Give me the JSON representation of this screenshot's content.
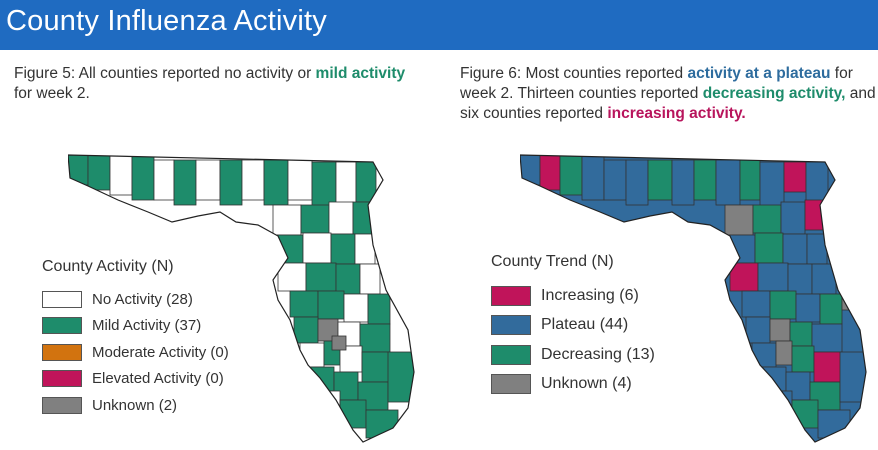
{
  "header": {
    "title": "County Influenza Activity"
  },
  "figure5": {
    "caption_prefix": "Figure 5: All counties reported no activity or ",
    "caption_highlight": "mild activity",
    "caption_suffix": " for week 2.",
    "highlight_color": "#1e8c6b",
    "legend_title": "County Activity (N)",
    "legend": [
      {
        "label": "No Activity (28)",
        "color": "#ffffff"
      },
      {
        "label": "Mild Activity (37)",
        "color": "#1e8c6b"
      },
      {
        "label": "Moderate Activity (0)",
        "color": "#d2730f"
      },
      {
        "label": "Elevated Activity (0)",
        "color": "#c0145a"
      },
      {
        "label": "Unknown (2)",
        "color": "#808080"
      }
    ]
  },
  "figure6": {
    "caption_parts": [
      {
        "text": "Figure 6: Most counties reported ",
        "hl": false
      },
      {
        "text": "activity at a plateau",
        "hl": true,
        "color": "#2e6c9e"
      },
      {
        "text": " for week 2. Thirteen counties reported ",
        "hl": false
      },
      {
        "text": "decreasing activity,",
        "hl": true,
        "color": "#1e8c6b"
      },
      {
        "text": " and six counties reported ",
        "hl": false
      },
      {
        "text": "increasing activity.",
        "hl": true,
        "color": "#b8145c"
      }
    ],
    "legend_title": "County Trend (N)",
    "legend": [
      {
        "label": "Increasing (6)",
        "color": "#c0145a"
      },
      {
        "label": "Plateau (44)",
        "color": "#326b9c"
      },
      {
        "label": "Decreasing (13)",
        "color": "#1e8c6b"
      },
      {
        "label": "Unknown (4)",
        "color": "#808080"
      }
    ]
  }
}
